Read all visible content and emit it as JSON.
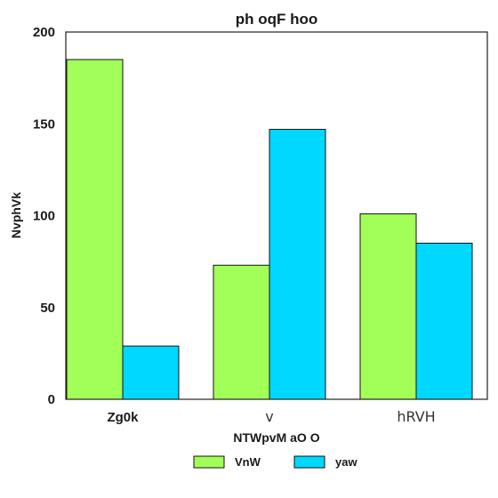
{
  "chart_data": {
    "type": "bar",
    "title": "ph oqF hoo",
    "xlabel": "NTWpvM aO O",
    "ylabel": "NvphVk",
    "categories": [
      "Zg0k",
      "v",
      "hRVH"
    ],
    "series": [
      {
        "name": "VnW",
        "values": [
          185,
          73,
          101
        ],
        "color": "#a2ff57"
      },
      {
        "name": "yaw",
        "values": [
          29,
          147,
          85
        ],
        "color": "#00d8ff"
      }
    ],
    "ylim": [
      0,
      200
    ],
    "yticks": [
      0,
      50,
      100,
      150,
      200
    ],
    "grid": false,
    "legend": "bottom-center"
  }
}
